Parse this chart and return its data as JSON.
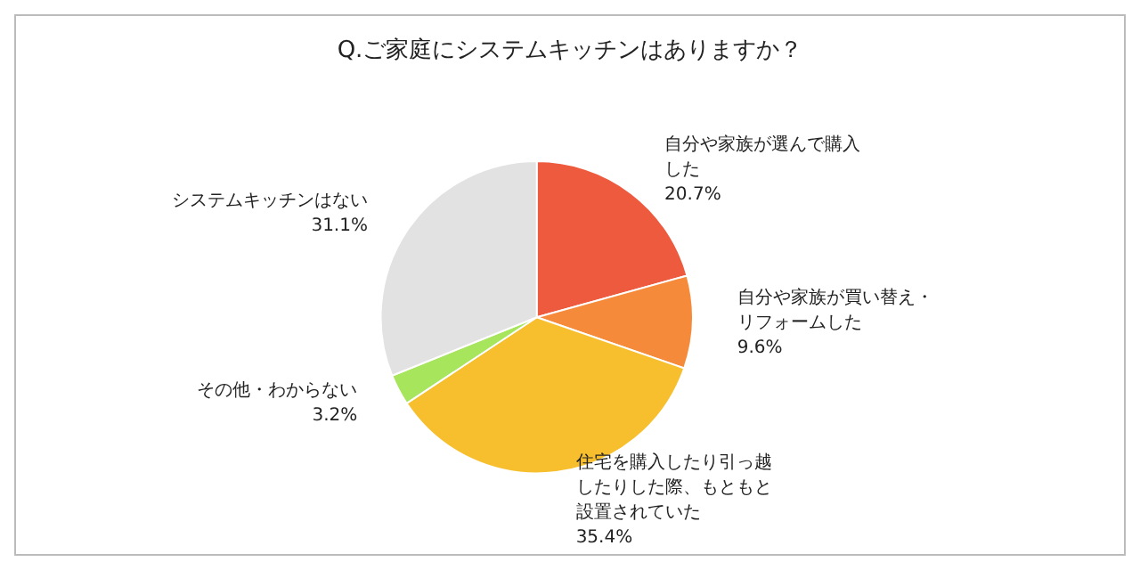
{
  "chart_data": {
    "type": "pie",
    "title": "Q.ご家庭にシステムキッチンはありますか？",
    "categories": [
      "自分や家族が選んで購入した",
      "自分や家族が買い替え・リフォームした",
      "住宅を購入したり引っ越したりした際、もともと設置されていた",
      "その他・わからない",
      "システムキッチンはない"
    ],
    "values": [
      20.7,
      9.6,
      35.4,
      3.2,
      31.1
    ],
    "value_labels": [
      "20.7%",
      "9.6%",
      "35.4%",
      "3.2%",
      "31.1%"
    ],
    "colors": [
      "#ee5a3e",
      "#f58a3a",
      "#f7bf2e",
      "#a6e55c",
      "#e2e2e2"
    ],
    "legend": false
  }
}
